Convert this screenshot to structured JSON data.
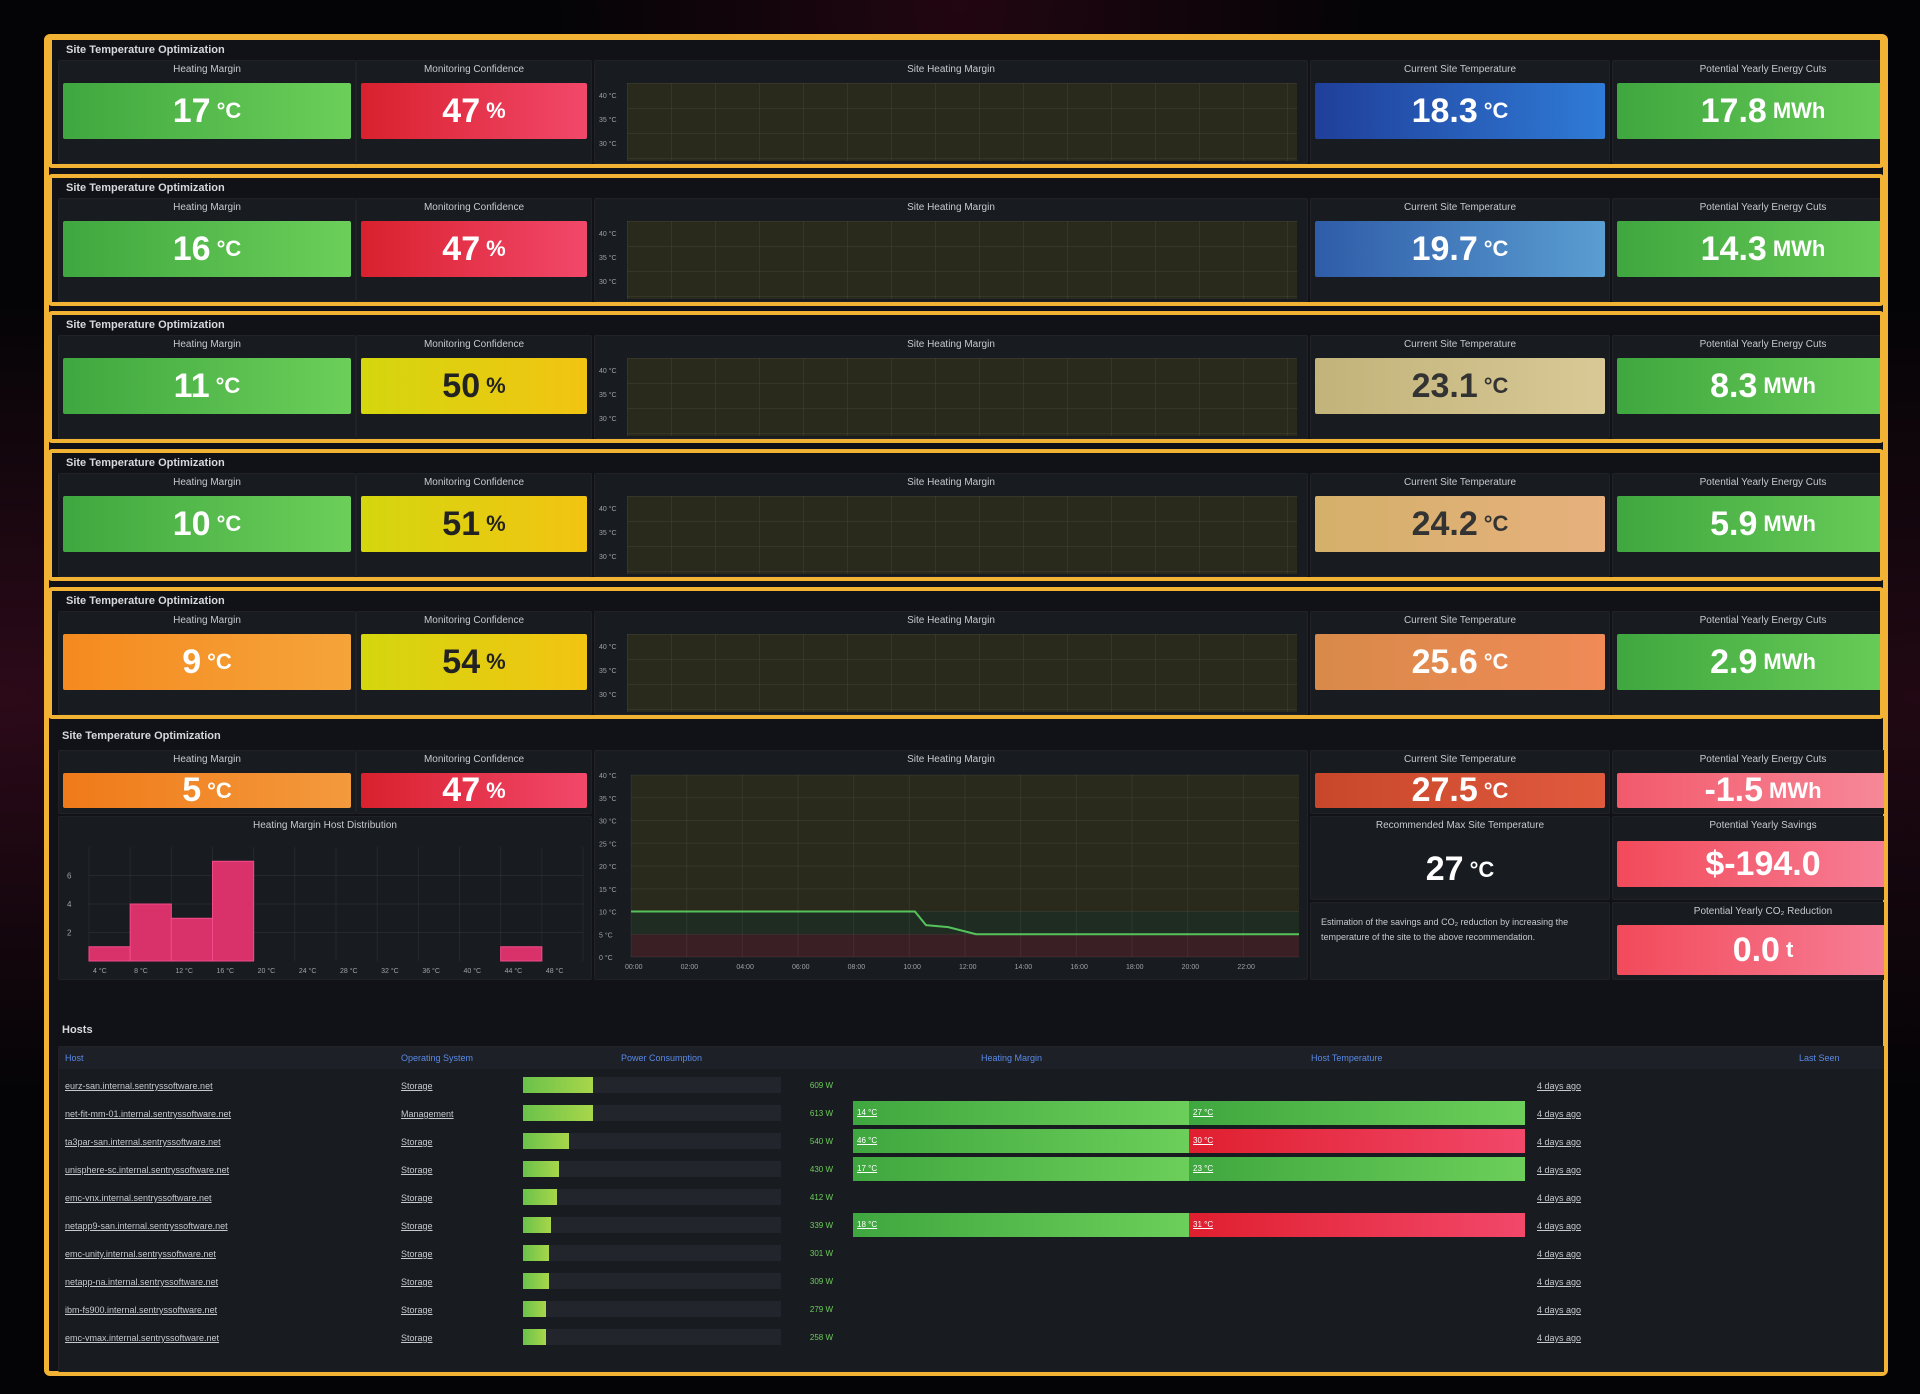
{
  "rows": [
    {
      "title": "Site Temperature Optimization",
      "heating_margin": {
        "label": "Heating Margin",
        "value": "17",
        "unit": "°C",
        "color": "green"
      },
      "confidence": {
        "label": "Monitoring Confidence",
        "value": "47",
        "unit": "%",
        "color": "red"
      },
      "graph_title": "Site Heating Margin",
      "graph_ticks": [
        "40 °C",
        "35 °C",
        "30 °C"
      ],
      "current_temp": {
        "label": "Current Site Temperature",
        "value": "18.3",
        "unit": "°C",
        "color": "blue1"
      },
      "energy": {
        "label": "Potential Yearly Energy Cuts",
        "value": "17.8",
        "unit": "MWh",
        "color": "green"
      }
    },
    {
      "title": "Site Temperature Optimization",
      "heating_margin": {
        "label": "Heating Margin",
        "value": "16",
        "unit": "°C",
        "color": "green"
      },
      "confidence": {
        "label": "Monitoring Confidence",
        "value": "47",
        "unit": "%",
        "color": "red"
      },
      "graph_title": "Site Heating Margin",
      "graph_ticks": [
        "40 °C",
        "35 °C",
        "30 °C"
      ],
      "current_temp": {
        "label": "Current Site Temperature",
        "value": "19.7",
        "unit": "°C",
        "color": "blue2"
      },
      "energy": {
        "label": "Potential Yearly Energy Cuts",
        "value": "14.3",
        "unit": "MWh",
        "color": "green"
      }
    },
    {
      "title": "Site Temperature Optimization",
      "heating_margin": {
        "label": "Heating Margin",
        "value": "11",
        "unit": "°C",
        "color": "green"
      },
      "confidence": {
        "label": "Monitoring Confidence",
        "value": "50",
        "unit": "%",
        "color": "yellow"
      },
      "graph_title": "Site Heating Margin",
      "graph_ticks": [
        "40 °C",
        "35 °C",
        "30 °C"
      ],
      "current_temp": {
        "label": "Current Site Temperature",
        "value": "23.1",
        "unit": "°C",
        "color": "khaki1"
      },
      "energy": {
        "label": "Potential Yearly Energy Cuts",
        "value": "8.3",
        "unit": "MWh",
        "color": "green"
      }
    },
    {
      "title": "Site Temperature Optimization",
      "heating_margin": {
        "label": "Heating Margin",
        "value": "10",
        "unit": "°C",
        "color": "green"
      },
      "confidence": {
        "label": "Monitoring Confidence",
        "value": "51",
        "unit": "%",
        "color": "yellow"
      },
      "graph_title": "Site Heating Margin",
      "graph_ticks": [
        "40 °C",
        "35 °C",
        "30 °C"
      ],
      "current_temp": {
        "label": "Current Site Temperature",
        "value": "24.2",
        "unit": "°C",
        "color": "khaki2"
      },
      "energy": {
        "label": "Potential Yearly Energy Cuts",
        "value": "5.9",
        "unit": "MWh",
        "color": "green"
      }
    },
    {
      "title": "Site Temperature Optimization",
      "heating_margin": {
        "label": "Heating Margin",
        "value": "9",
        "unit": "°C",
        "color": "orange1"
      },
      "confidence": {
        "label": "Monitoring Confidence",
        "value": "54",
        "unit": "%",
        "color": "yellow"
      },
      "graph_title": "Site Heating Margin",
      "graph_ticks": [
        "40 °C",
        "35 °C",
        "30 °C"
      ],
      "current_temp": {
        "label": "Current Site Temperature",
        "value": "25.6",
        "unit": "°C",
        "color": "salmon"
      },
      "energy": {
        "label": "Potential Yearly Energy Cuts",
        "value": "2.9",
        "unit": "MWh",
        "color": "green"
      }
    }
  ],
  "main": {
    "title": "Site Temperature Optimization",
    "heating_margin": {
      "label": "Heating Margin",
      "value": "5",
      "unit": "°C"
    },
    "confidence": {
      "label": "Monitoring Confidence",
      "value": "47",
      "unit": "%"
    },
    "graph_title": "Site Heating Margin",
    "graph_y_ticks": [
      "40 °C",
      "35 °C",
      "30 °C",
      "25 °C",
      "20 °C",
      "15 °C",
      "10 °C",
      "5 °C",
      "0 °C"
    ],
    "graph_x_ticks": [
      "00:00",
      "02:00",
      "04:00",
      "06:00",
      "08:00",
      "10:00",
      "12:00",
      "14:00",
      "16:00",
      "18:00",
      "20:00",
      "22:00"
    ],
    "current_temp": {
      "label": "Current Site Temperature",
      "value": "27.5",
      "unit": "°C"
    },
    "energy": {
      "label": "Potential Yearly Energy Cuts",
      "value": "-1.5",
      "unit": "MWh"
    },
    "recommended": {
      "label": "Recommended Max Site Temperature",
      "value": "27",
      "unit": "°C"
    },
    "savings": {
      "label": "Potential Yearly Savings",
      "value": "$-194.0"
    },
    "co2": {
      "label": "Potential Yearly CO₂ Reduction",
      "value": "0.0",
      "unit": "t"
    },
    "estimation_text": "Estimation of the savings and CO₂ reduction by increasing the temperature of the site to the above recommendation.",
    "histogram_title": "Heating Margin Host Distribution",
    "histogram_y_ticks": [
      "6",
      "4",
      "2"
    ],
    "histogram_x_ticks": [
      "4 °C",
      "8 °C",
      "12 °C",
      "16 °C",
      "20 °C",
      "24 °C",
      "28 °C",
      "32 °C",
      "36 °C",
      "40 °C",
      "44 °C",
      "48 °C"
    ]
  },
  "chart_data": {
    "type": "bar",
    "categories": [
      "4 °C",
      "8 °C",
      "12 °C",
      "16 °C",
      "20 °C",
      "24 °C",
      "28 °C",
      "32 °C",
      "36 °C",
      "40 °C",
      "44 °C",
      "48 °C"
    ],
    "values": [
      1,
      4,
      3,
      7,
      0,
      0,
      0,
      0,
      0,
      0,
      1,
      0
    ],
    "title": "Heating Margin Host Distribution",
    "ylim": [
      0,
      8
    ]
  },
  "hosts": {
    "title": "Hosts",
    "headers": {
      "host": "Host",
      "os": "Operating System",
      "power": "Power Consumption",
      "heating": "Heating Margin",
      "temp": "Host Temperature",
      "last_seen": "Last Seen"
    },
    "rows": [
      {
        "host": "eurz-san.internal.sentryssoftware.net",
        "os": "Storage",
        "power": "609 W",
        "power_frac": 0.27,
        "hm": "",
        "ht": "",
        "last": "4 days ago"
      },
      {
        "host": "net-fit-mm-01.internal.sentryssoftware.net",
        "os": "Management",
        "power": "613 W",
        "power_frac": 0.27,
        "hm": "14 °C",
        "ht": "27 °C",
        "ht_color": "green",
        "last": "4 days ago"
      },
      {
        "host": "ta3par-san.internal.sentryssoftware.net",
        "os": "Storage",
        "power": "540 W",
        "power_frac": 0.18,
        "hm": "46 °C",
        "ht": "30 °C",
        "ht_color": "red",
        "last": "4 days ago"
      },
      {
        "host": "unisphere-sc.internal.sentryssoftware.net",
        "os": "Storage",
        "power": "430 W",
        "power_frac": 0.14,
        "hm": "17 °C",
        "ht": "23 °C",
        "ht_color": "green",
        "last": "4 days ago"
      },
      {
        "host": "emc-vnx.internal.sentryssoftware.net",
        "os": "Storage",
        "power": "412 W",
        "power_frac": 0.13,
        "hm": "",
        "ht": "",
        "last": "4 days ago"
      },
      {
        "host": "netapp9-san.internal.sentryssoftware.net",
        "os": "Storage",
        "power": "339 W",
        "power_frac": 0.11,
        "hm": "18 °C",
        "ht": "31 °C",
        "ht_color": "red",
        "last": "4 days ago"
      },
      {
        "host": "emc-unity.internal.sentryssoftware.net",
        "os": "Storage",
        "power": "301 W",
        "power_frac": 0.1,
        "hm": "",
        "ht": "",
        "last": "4 days ago"
      },
      {
        "host": "netapp-na.internal.sentryssoftware.net",
        "os": "Storage",
        "power": "309 W",
        "power_frac": 0.1,
        "hm": "",
        "ht": "",
        "last": "4 days ago"
      },
      {
        "host": "ibm-fs900.internal.sentryssoftware.net",
        "os": "Storage",
        "power": "279 W",
        "power_frac": 0.09,
        "hm": "",
        "ht": "",
        "last": "4 days ago"
      },
      {
        "host": "emc-vmax.internal.sentryssoftware.net",
        "os": "Storage",
        "power": "258 W",
        "power_frac": 0.09,
        "hm": "",
        "ht": "",
        "last": "4 days ago"
      }
    ]
  }
}
